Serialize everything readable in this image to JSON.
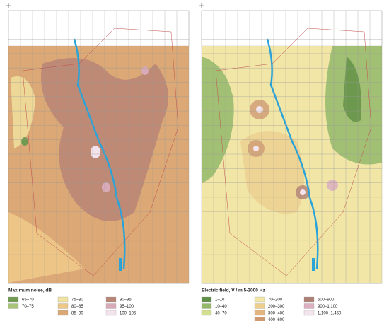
{
  "maps": [
    {
      "legend_title": "Maximum noise, dB",
      "legend": [
        [
          {
            "label": "65–70",
            "color": "#6f9a4f"
          },
          {
            "label": "70–75",
            "color": "#a9c47a"
          }
        ],
        [
          {
            "label": "75–80",
            "color": "#f1e3a0"
          },
          {
            "label": "80–85",
            "color": "#edc889"
          },
          {
            "label": "85–90",
            "color": "#dba876"
          }
        ],
        [
          {
            "label": "90–95",
            "color": "#b88576"
          },
          {
            "label": "95–100",
            "color": "#d9aab8"
          },
          {
            "label": "100–105",
            "color": "#f3e3ec"
          }
        ]
      ]
    },
    {
      "legend_title": "Electric field, V / m 5-2000 Hz",
      "legend": [
        [
          {
            "label": "1–10",
            "color": "#5f8f45"
          },
          {
            "label": "10–40",
            "color": "#94b86a"
          },
          {
            "label": "40–70",
            "color": "#d3de8e"
          }
        ],
        [
          {
            "label": "70–200",
            "color": "#f1e6a6"
          },
          {
            "label": "200–300",
            "color": "#edd090"
          },
          {
            "label": "300–400",
            "color": "#e3b67f"
          },
          {
            "label": "400–600",
            "color": "#cf9a74"
          }
        ],
        [
          {
            "label": "600–900",
            "color": "#b07f74"
          },
          {
            "label": "900–1,100",
            "color": "#dcb0c0"
          },
          {
            "label": "1,100–1,450",
            "color": "#f4e4ee"
          }
        ]
      ]
    }
  ]
}
